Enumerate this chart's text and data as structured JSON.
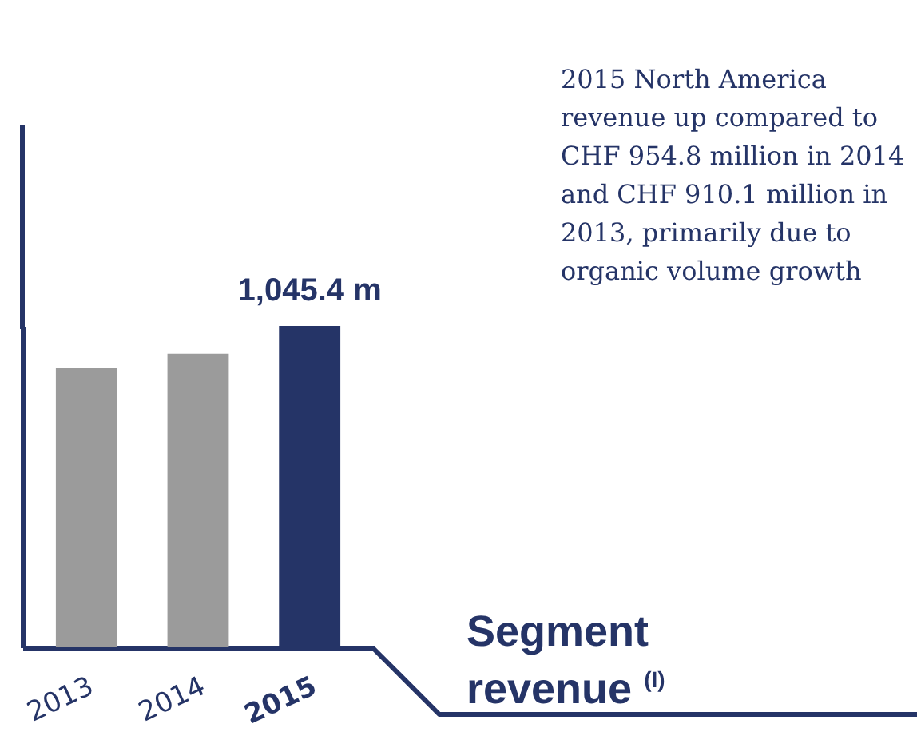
{
  "chart_data": {
    "type": "bar",
    "title": "Segment revenue $^{(I)}$",
    "categories": [
      "2013",
      "2014",
      "2015"
    ],
    "values": [
      910.1,
      954.8,
      1045.4
    ],
    "colors": [
      "#9b9b9b",
      "#9b9b9b",
      "#253467"
    ],
    "value_labels": [
      null,
      null,
      "1,045.4 m"
    ],
    "annotations": [
      "2015 North America revenue up compared to CHF 954.8 million in 2014 and CHF 910.1 million in 2013, primarily due to organic volume growth"
    ]
  }
}
